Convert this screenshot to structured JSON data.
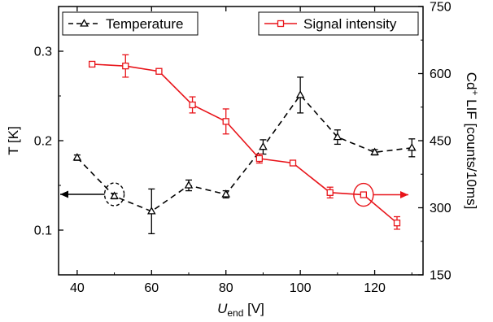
{
  "chart_data": {
    "type": "line",
    "xlabel": {
      "var": "U",
      "sub": "end",
      "unit": "[V]"
    },
    "ylabel_left": "T [K]",
    "ylabel_right": {
      "pre": "Cd",
      "sup": "+",
      "post": " LIF [counts/10ms]"
    },
    "xlim": [
      35,
      133
    ],
    "ylim_left": [
      0.05,
      0.35
    ],
    "ylim_right": [
      150,
      750
    ],
    "xticks": [
      40,
      60,
      80,
      100,
      120
    ],
    "yticks_left": [
      0.1,
      0.2,
      0.3
    ],
    "yticks_right": [
      150,
      300,
      450,
      600,
      750
    ],
    "grid": false,
    "legend": [
      "top-left",
      "top-right"
    ],
    "series": [
      {
        "name": "Temperature",
        "axis": "left",
        "color": "#000000",
        "marker": "triangle",
        "dash": "dashed",
        "x": [
          40,
          50,
          60,
          70,
          80,
          90,
          100,
          110,
          120,
          130
        ],
        "y": [
          0.181,
          0.138,
          0.121,
          0.15,
          0.14,
          0.193,
          0.251,
          0.204,
          0.187,
          0.192
        ],
        "err": [
          0.003,
          0.003,
          0.025,
          0.006,
          0.004,
          0.008,
          0.02,
          0.008,
          0.003,
          0.01
        ]
      },
      {
        "name": "Signal intensity",
        "axis": "right",
        "color": "#e8141a",
        "marker": "square",
        "dash": "solid",
        "x": [
          44,
          53,
          62,
          71,
          80,
          89,
          98,
          108,
          117,
          126
        ],
        "y": [
          621,
          617,
          605,
          530,
          493,
          410,
          400,
          334,
          329,
          266
        ],
        "err": [
          5,
          25,
          6,
          18,
          28,
          10,
          5,
          12,
          5,
          14
        ]
      }
    ],
    "annotations": [
      {
        "type": "ellipse",
        "x": 50,
        "y": 0.14,
        "axis": "left",
        "color": "#000000",
        "arrow": "left"
      },
      {
        "type": "ellipse",
        "x": 117,
        "y": 329,
        "axis": "right",
        "color": "#e8141a",
        "arrow": "right"
      }
    ]
  }
}
